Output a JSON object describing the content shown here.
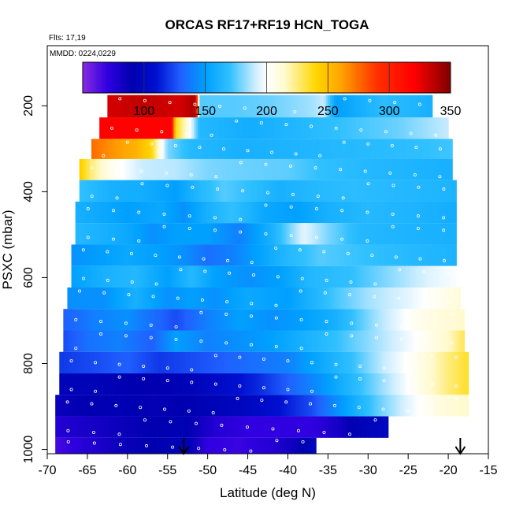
{
  "chart_data": {
    "type": "heatmap",
    "title": "ORCAS RF17+RF19 HCN_TOGA",
    "flights_note": "Flts: 17,19",
    "dates_note": "MMDD: 0224,0229",
    "xlabel": "Latitude (deg N)",
    "ylabel": "PSXC (mbar)",
    "xlim": [
      -70,
      -15
    ],
    "ylim": [
      1010,
      60
    ],
    "x_ticks": [
      -70,
      -65,
      -60,
      -55,
      -50,
      -45,
      -40,
      -35,
      -30,
      -25,
      -20,
      -15
    ],
    "y_ticks": [
      200,
      400,
      600,
      800,
      1000
    ],
    "grid": false,
    "colorbar": {
      "min": 50,
      "max": 350,
      "ticks": [
        100,
        150,
        200,
        250,
        300,
        350
      ],
      "stops": [
        {
          "value": 50,
          "color": "#8a2be2"
        },
        {
          "value": 70,
          "color": "#3000e0"
        },
        {
          "value": 90,
          "color": "#0000b0"
        },
        {
          "value": 110,
          "color": "#0010d0"
        },
        {
          "value": 130,
          "color": "#2060ff"
        },
        {
          "value": 150,
          "color": "#00a0ff"
        },
        {
          "value": 170,
          "color": "#30c0ff"
        },
        {
          "value": 190,
          "color": "#c8ecff"
        },
        {
          "value": 200,
          "color": "#ffffff"
        },
        {
          "value": 215,
          "color": "#fffacd"
        },
        {
          "value": 240,
          "color": "#ffd700"
        },
        {
          "value": 260,
          "color": "#ffa500"
        },
        {
          "value": 290,
          "color": "#ff3000"
        },
        {
          "value": 320,
          "color": "#ff0000"
        },
        {
          "value": 350,
          "color": "#800000"
        }
      ]
    },
    "arrows": [
      {
        "lat": -53,
        "label": "down-arrow"
      },
      {
        "lat": -18.5,
        "label": "down-arrow"
      }
    ],
    "bands": [
      {
        "p_top": 175,
        "p_bot": 227,
        "lat_start": -62.5,
        "lat_end": -22,
        "points": [
          [
            -62.5,
            330
          ],
          [
            -58,
            335
          ],
          [
            -53.5,
            330
          ],
          [
            -51.5,
            340
          ],
          [
            -51,
            175
          ],
          [
            -47,
            175
          ],
          [
            -42,
            178
          ],
          [
            -37,
            185
          ],
          [
            -35.5,
            190
          ],
          [
            -34,
            150
          ],
          [
            -28,
            168
          ],
          [
            -22,
            160
          ]
        ]
      },
      {
        "p_top": 227,
        "p_bot": 277,
        "lat_start": -63.5,
        "lat_end": -20,
        "points": [
          [
            -63.5,
            320
          ],
          [
            -56,
            318
          ],
          [
            -54.5,
            320
          ],
          [
            -54,
            240
          ],
          [
            -52.5,
            210
          ],
          [
            -51,
            165
          ],
          [
            -45,
            158
          ],
          [
            -38,
            165
          ],
          [
            -32,
            172
          ],
          [
            -26,
            178
          ],
          [
            -20,
            190
          ]
        ]
      },
      {
        "p_top": 277,
        "p_bot": 324,
        "lat_start": -64.5,
        "lat_end": -19.5,
        "points": [
          [
            -64.5,
            275
          ],
          [
            -62,
            265
          ],
          [
            -59,
            255
          ],
          [
            -57,
            240
          ],
          [
            -55,
            180
          ],
          [
            -52,
            165
          ],
          [
            -46,
            160
          ],
          [
            -40,
            162
          ],
          [
            -34,
            165
          ],
          [
            -26,
            168
          ],
          [
            -19.5,
            172
          ]
        ]
      },
      {
        "p_top": 324,
        "p_bot": 373,
        "lat_start": -66,
        "lat_end": -19.5,
        "points": [
          [
            -66,
            245
          ],
          [
            -64.5,
            225
          ],
          [
            -62,
            205
          ],
          [
            -58,
            190
          ],
          [
            -54,
            188
          ],
          [
            -50,
            180
          ],
          [
            -46,
            178
          ],
          [
            -40,
            176
          ],
          [
            -36,
            170
          ],
          [
            -30,
            165
          ],
          [
            -24,
            162
          ],
          [
            -19.5,
            160
          ]
        ]
      },
      {
        "p_top": 373,
        "p_bot": 423,
        "lat_start": -66,
        "lat_end": -19,
        "points": [
          [
            -66,
            170
          ],
          [
            -62,
            160
          ],
          [
            -58,
            158
          ],
          [
            -54,
            150
          ],
          [
            -51,
            165
          ],
          [
            -48,
            175
          ],
          [
            -45,
            170
          ],
          [
            -41,
            160
          ],
          [
            -37,
            165
          ],
          [
            -32,
            168
          ],
          [
            -26,
            165
          ],
          [
            -19,
            162
          ]
        ]
      },
      {
        "p_top": 423,
        "p_bot": 473,
        "lat_start": -66.5,
        "lat_end": -19,
        "points": [
          [
            -66.5,
            160
          ],
          [
            -63,
            155
          ],
          [
            -60,
            150
          ],
          [
            -56,
            155
          ],
          [
            -53,
            145
          ],
          [
            -50,
            160
          ],
          [
            -47,
            170
          ],
          [
            -43,
            155
          ],
          [
            -39,
            150
          ],
          [
            -35,
            160
          ],
          [
            -30,
            165
          ],
          [
            -24,
            162
          ],
          [
            -19,
            158
          ]
        ]
      },
      {
        "p_top": 473,
        "p_bot": 523,
        "lat_start": -66.5,
        "lat_end": -19,
        "points": [
          [
            -66.5,
            165
          ],
          [
            -63,
            160
          ],
          [
            -60,
            155
          ],
          [
            -57,
            145
          ],
          [
            -54,
            150
          ],
          [
            -50,
            150
          ],
          [
            -46,
            140
          ],
          [
            -42,
            160
          ],
          [
            -38,
            195
          ],
          [
            -35,
            180
          ],
          [
            -31,
            165
          ],
          [
            -25,
            162
          ],
          [
            -19,
            160
          ]
        ]
      },
      {
        "p_top": 523,
        "p_bot": 573,
        "lat_start": -67,
        "lat_end": -19,
        "points": [
          [
            -67,
            145
          ],
          [
            -63,
            150
          ],
          [
            -60,
            155
          ],
          [
            -56,
            150
          ],
          [
            -53,
            145
          ],
          [
            -50,
            135
          ],
          [
            -47,
            140
          ],
          [
            -44,
            150
          ],
          [
            -40,
            165
          ],
          [
            -36,
            175
          ],
          [
            -30,
            170
          ],
          [
            -24,
            165
          ],
          [
            -19,
            162
          ]
        ]
      },
      {
        "p_top": 573,
        "p_bot": 623,
        "lat_start": -67,
        "lat_end": -18.5,
        "points": [
          [
            -67,
            150
          ],
          [
            -63,
            160
          ],
          [
            -59,
            165
          ],
          [
            -55,
            150
          ],
          [
            -52,
            165
          ],
          [
            -49,
            150
          ],
          [
            -45,
            145
          ],
          [
            -41,
            150
          ],
          [
            -37,
            165
          ],
          [
            -32,
            170
          ],
          [
            -26,
            185
          ],
          [
            -22,
            195
          ],
          [
            -18.5,
            200
          ]
        ]
      },
      {
        "p_top": 623,
        "p_bot": 673,
        "lat_start": -67.5,
        "lat_end": -18.5,
        "points": [
          [
            -67.5,
            145
          ],
          [
            -63,
            145
          ],
          [
            -59,
            160
          ],
          [
            -55,
            145
          ],
          [
            -52,
            150
          ],
          [
            -49,
            145
          ],
          [
            -45,
            155
          ],
          [
            -40,
            150
          ],
          [
            -35,
            170
          ],
          [
            -30,
            185
          ],
          [
            -25,
            195
          ],
          [
            -21,
            205
          ],
          [
            -18.5,
            212
          ]
        ]
      },
      {
        "p_top": 673,
        "p_bot": 723,
        "lat_start": -68,
        "lat_end": -18,
        "points": [
          [
            -68,
            130
          ],
          [
            -64,
            140
          ],
          [
            -60,
            145
          ],
          [
            -57,
            135
          ],
          [
            -54,
            125
          ],
          [
            -50,
            140
          ],
          [
            -46,
            150
          ],
          [
            -42,
            145
          ],
          [
            -38,
            150
          ],
          [
            -34,
            160
          ],
          [
            -29,
            185
          ],
          [
            -24,
            205
          ],
          [
            -20,
            212
          ],
          [
            -18,
            215
          ]
        ]
      },
      {
        "p_top": 723,
        "p_bot": 773,
        "lat_start": -68,
        "lat_end": -18,
        "points": [
          [
            -68,
            125
          ],
          [
            -65,
            135
          ],
          [
            -61,
            140
          ],
          [
            -57,
            130
          ],
          [
            -54,
            150
          ],
          [
            -50,
            140
          ],
          [
            -46,
            145
          ],
          [
            -42,
            150
          ],
          [
            -38,
            160
          ],
          [
            -34,
            170
          ],
          [
            -29,
            185
          ],
          [
            -24,
            200
          ],
          [
            -20,
            215
          ],
          [
            -18,
            230
          ]
        ]
      },
      {
        "p_top": 773,
        "p_bot": 823,
        "lat_start": -68.5,
        "lat_end": -17.5,
        "points": [
          [
            -68.5,
            120
          ],
          [
            -64,
            125
          ],
          [
            -60,
            130
          ],
          [
            -56,
            120
          ],
          [
            -52,
            125
          ],
          [
            -48,
            130
          ],
          [
            -44,
            135
          ],
          [
            -40,
            140
          ],
          [
            -36,
            155
          ],
          [
            -32,
            170
          ],
          [
            -28,
            190
          ],
          [
            -24,
            205
          ],
          [
            -20,
            225
          ],
          [
            -17.5,
            235
          ]
        ]
      },
      {
        "p_top": 823,
        "p_bot": 873,
        "lat_start": -68.5,
        "lat_end": -17.5,
        "points": [
          [
            -68.5,
            95
          ],
          [
            -64,
            95
          ],
          [
            -60,
            90
          ],
          [
            -56,
            90
          ],
          [
            -52,
            95
          ],
          [
            -48,
            105
          ],
          [
            -44,
            115
          ],
          [
            -40,
            130
          ],
          [
            -36,
            145
          ],
          [
            -32,
            165
          ],
          [
            -28,
            185
          ],
          [
            -24,
            205
          ],
          [
            -20,
            225
          ],
          [
            -17.5,
            235
          ]
        ]
      },
      {
        "p_top": 873,
        "p_bot": 923,
        "lat_start": -69,
        "lat_end": -17.5,
        "points": [
          [
            -69,
            85
          ],
          [
            -65,
            90
          ],
          [
            -61,
            92
          ],
          [
            -57,
            88
          ],
          [
            -53,
            90
          ],
          [
            -49,
            95
          ],
          [
            -45,
            100
          ],
          [
            -41,
            110
          ],
          [
            -37,
            125
          ],
          [
            -33,
            150
          ],
          [
            -29,
            175
          ],
          [
            -25,
            195
          ],
          [
            -21,
            210
          ],
          [
            -17.5,
            215
          ]
        ]
      },
      {
        "p_top": 923,
        "p_bot": 973,
        "lat_start": -69,
        "lat_end": -27.5,
        "points": [
          [
            -69,
            75
          ],
          [
            -65,
            80
          ],
          [
            -61,
            85
          ],
          [
            -57,
            90
          ],
          [
            -53,
            92
          ],
          [
            -49,
            75
          ],
          [
            -45,
            70
          ],
          [
            -41,
            70
          ],
          [
            -37,
            70
          ],
          [
            -34,
            80
          ],
          [
            -31,
            95
          ],
          [
            -27.5,
            100
          ]
        ]
      },
      {
        "p_top": 973,
        "p_bot": 1010,
        "lat_start": -69,
        "lat_end": -36.5,
        "points": [
          [
            -69,
            65
          ],
          [
            -65,
            75
          ],
          [
            -61,
            85
          ],
          [
            -57,
            90
          ],
          [
            -53,
            95
          ],
          [
            -50,
            70
          ],
          [
            -46,
            68
          ],
          [
            -42,
            75
          ],
          [
            -39,
            85
          ],
          [
            -36.5,
            100
          ]
        ]
      }
    ]
  }
}
